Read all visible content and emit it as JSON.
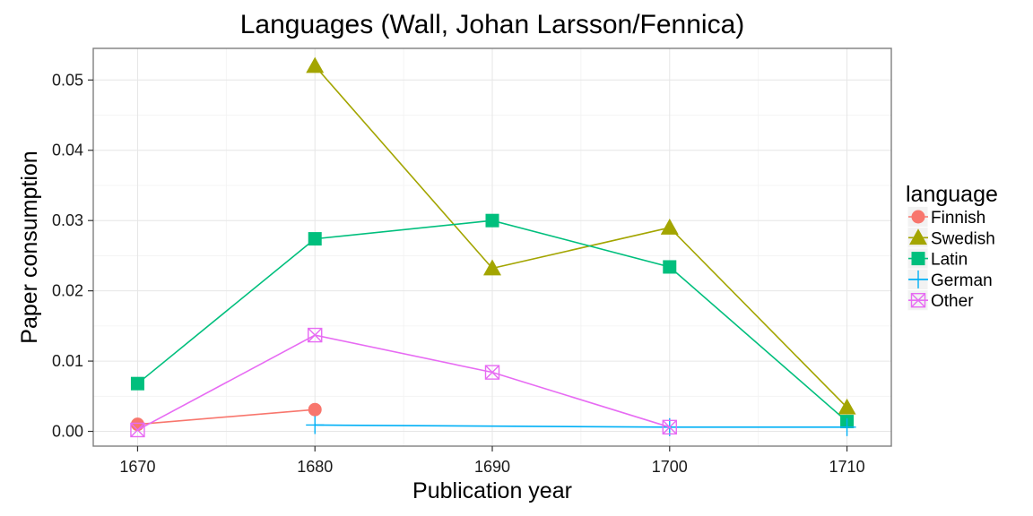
{
  "chart_data": {
    "type": "line",
    "title": "Languages (Wall, Johan Larsson/Fennica)",
    "xlabel": "Publication year",
    "ylabel": "Paper consumption",
    "xlim": [
      1667.5,
      1712.5
    ],
    "ylim": [
      -0.0021,
      0.0545
    ],
    "x_ticks": [
      1670,
      1680,
      1690,
      1700,
      1710
    ],
    "y_ticks": [
      0.0,
      0.01,
      0.02,
      0.03,
      0.04,
      0.05
    ],
    "y_tick_labels": [
      "0.00",
      "0.01",
      "0.02",
      "0.03",
      "0.04",
      "0.05"
    ],
    "grid": true,
    "legend": {
      "title": "language",
      "position": "right"
    },
    "series": [
      {
        "name": "Finnish",
        "color": "#F8766D",
        "marker": "circle",
        "points": [
          [
            1670,
            0.001
          ],
          [
            1680,
            0.0031
          ]
        ]
      },
      {
        "name": "Swedish",
        "color": "#A3A500",
        "marker": "triangle",
        "points": [
          [
            1680,
            0.052
          ],
          [
            1690,
            0.0232
          ],
          [
            1700,
            0.029
          ],
          [
            1710,
            0.0034
          ]
        ]
      },
      {
        "name": "Latin",
        "color": "#00BF7D",
        "marker": "square",
        "points": [
          [
            1670,
            0.0068
          ],
          [
            1680,
            0.0274
          ],
          [
            1690,
            0.03
          ],
          [
            1700,
            0.0234
          ],
          [
            1710,
            0.0014
          ]
        ]
      },
      {
        "name": "German",
        "color": "#00B0F6",
        "marker": "plus",
        "points": [
          [
            1680,
            0.0009
          ],
          [
            1700,
            0.0006
          ],
          [
            1710,
            0.0006
          ]
        ]
      },
      {
        "name": "Other",
        "color": "#E76BF3",
        "marker": "square-x",
        "points": [
          [
            1670,
            0.0002
          ],
          [
            1680,
            0.0137
          ],
          [
            1690,
            0.0084
          ],
          [
            1700,
            0.0006
          ]
        ]
      }
    ]
  }
}
